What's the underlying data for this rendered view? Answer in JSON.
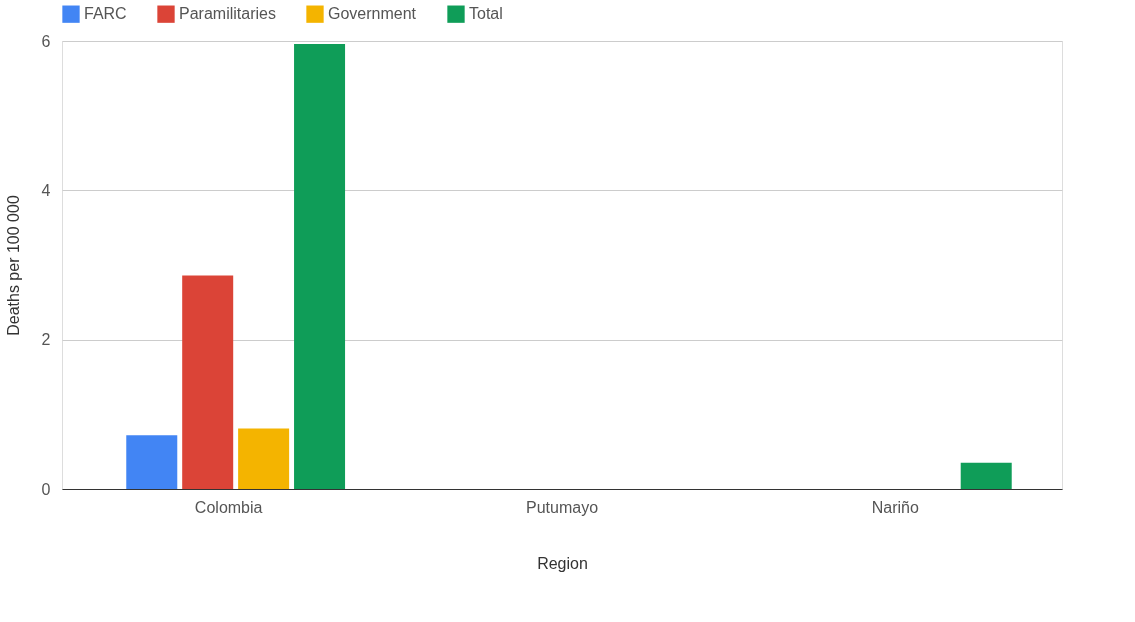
{
  "chart_data": {
    "type": "bar",
    "xlabel": "Region",
    "ylabel": "Deaths per 100 000",
    "categories": [
      "Colombia",
      "Putumayo",
      "Nariño"
    ],
    "series": [
      {
        "name": "FARC",
        "color": "#4285f4",
        "values": [
          0.72,
          null,
          null
        ]
      },
      {
        "name": "Paramilitaries",
        "color": "#db4437",
        "values": [
          2.86,
          null,
          null
        ]
      },
      {
        "name": "Government",
        "color": "#f4b400",
        "values": [
          0.81,
          null,
          null
        ]
      },
      {
        "name": "Total",
        "color": "#0f9d58",
        "values": [
          5.96,
          null,
          0.35
        ]
      }
    ],
    "ylim": [
      0,
      6
    ],
    "yticks": [
      0,
      2,
      4,
      6
    ],
    "grid": "y",
    "legend": "top"
  }
}
